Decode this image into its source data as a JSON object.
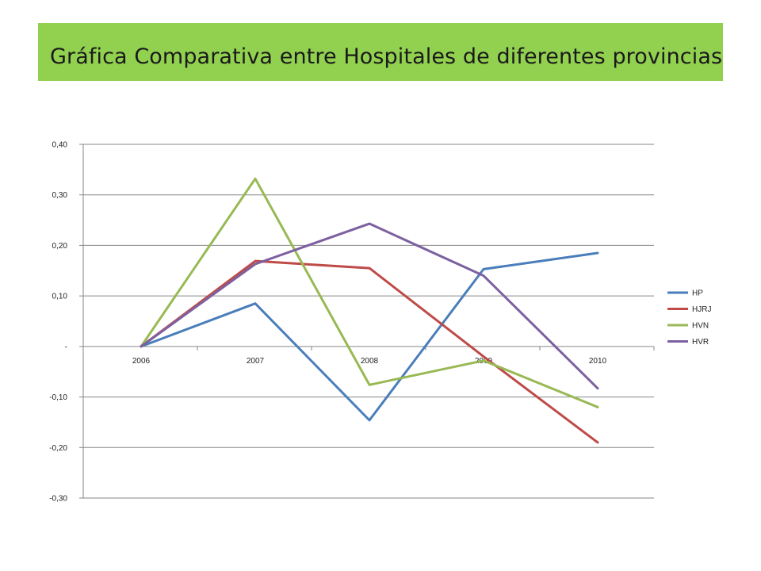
{
  "slide": {
    "title": "Gráfica Comparativa entre Hospitales de diferentes provincias",
    "banner_color": "#92d050"
  },
  "chart_data": {
    "type": "line",
    "title": "",
    "xlabel": "",
    "ylabel": "",
    "categories": [
      "2006",
      "2007",
      "2008",
      "2009",
      "2010"
    ],
    "ylim": [
      -0.3,
      0.4
    ],
    "yticks": [
      0.4,
      0.3,
      0.2,
      0.1,
      0,
      -0.1,
      -0.2,
      -0.3
    ],
    "ytick_labels": [
      "0,40",
      "0,30",
      "0,20",
      "0,10",
      "-",
      "-0,10",
      "-0,20",
      "-0,30"
    ],
    "grid": true,
    "legend_position": "right",
    "series": [
      {
        "name": "HP",
        "color": "#4a7ebb",
        "values": [
          0,
          0.085,
          -0.146,
          0.153,
          0.185
        ]
      },
      {
        "name": "HJRJ",
        "color": "#be4b48",
        "values": [
          0,
          0.169,
          0.155,
          -0.02,
          -0.19
        ]
      },
      {
        "name": "HVN",
        "color": "#98b954",
        "values": [
          0,
          0.332,
          -0.076,
          -0.028,
          -0.12
        ]
      },
      {
        "name": "HVR",
        "color": "#7d60a0",
        "values": [
          0,
          0.163,
          0.243,
          0.14,
          -0.083
        ]
      }
    ]
  }
}
